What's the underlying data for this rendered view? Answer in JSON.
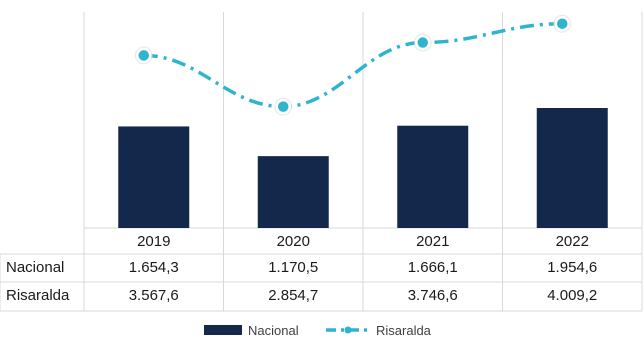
{
  "chart_data": {
    "type": "bar",
    "categories": [
      "2019",
      "2020",
      "2021",
      "2022"
    ],
    "series": [
      {
        "name": "Nacional",
        "type": "bar",
        "color": "#14284b",
        "values": [
          1654.3,
          1170.5,
          1666.1,
          1954.6
        ],
        "labels": [
          "1.654,3",
          "1.170,5",
          "1.666,1",
          "1.954,6"
        ]
      },
      {
        "name": "Risaralda",
        "type": "line",
        "style": "dash-dot",
        "color": "#2fb4cf",
        "values": [
          3567.6,
          2854.7,
          3746.6,
          4009.2
        ],
        "labels": [
          "3.567,6",
          "2.854,7",
          "3.746,6",
          "4.009,2"
        ]
      }
    ],
    "data_table": true,
    "legend": "bottom",
    "grid": "vertical-category-separators",
    "title": ""
  }
}
